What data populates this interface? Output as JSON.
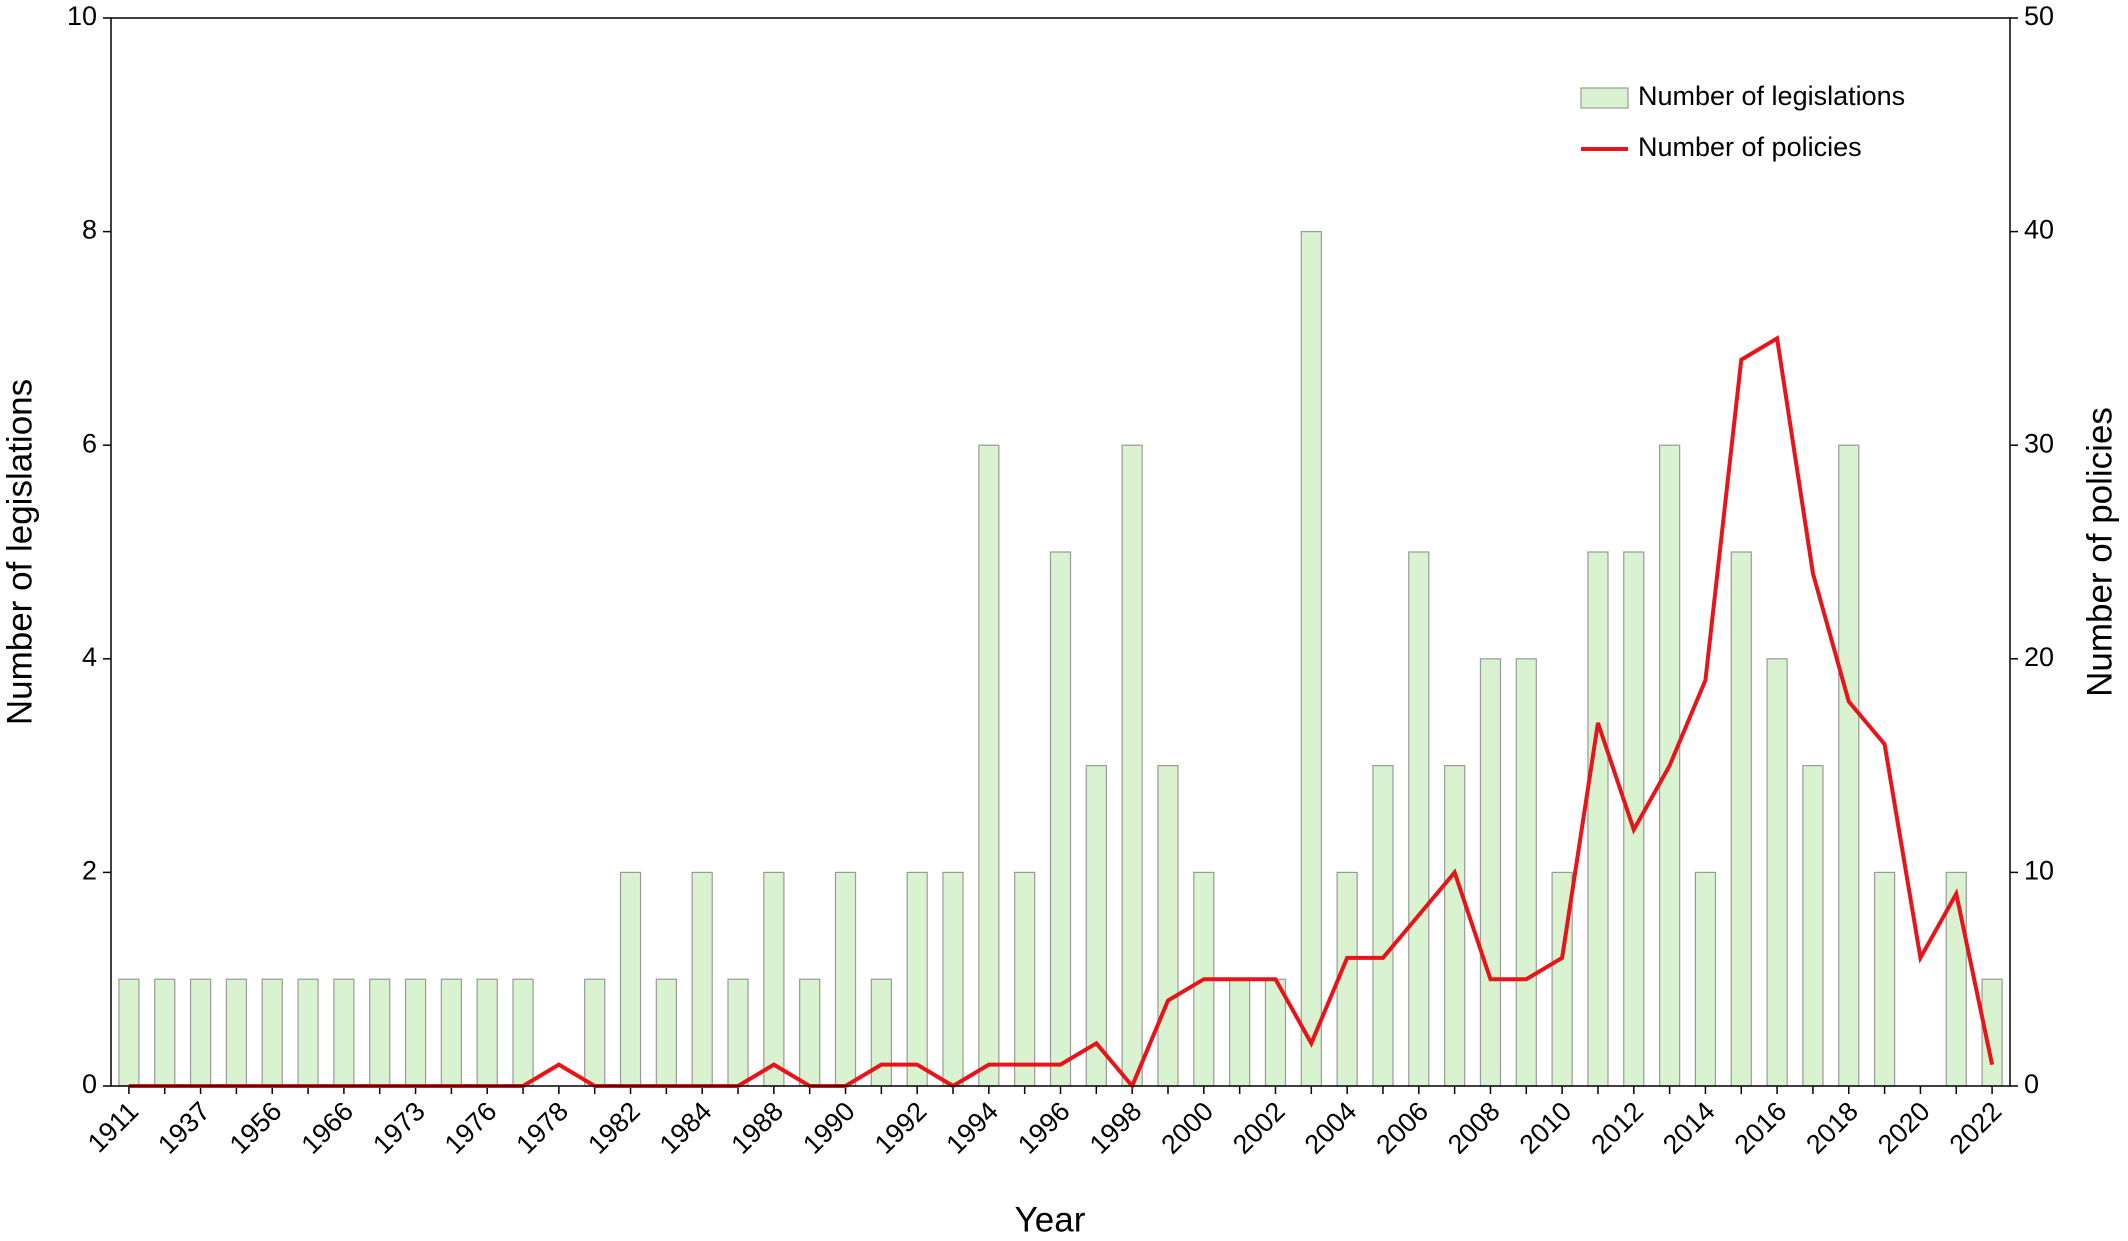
{
  "chart_data": {
    "type": "bar",
    "xlabel": "Year",
    "ylabel": "Number of legislations",
    "y2label": "Number of policies",
    "categories": [
      "1911",
      null,
      "1937",
      null,
      "1956",
      null,
      "1966",
      null,
      "1973",
      null,
      "1976",
      null,
      "1978",
      null,
      "1982",
      null,
      "1984",
      null,
      "1988",
      null,
      "1990",
      null,
      "1992",
      null,
      "1994",
      null,
      "1996",
      null,
      "1998",
      null,
      "2000",
      null,
      "2002",
      null,
      "2004",
      null,
      "2006",
      null,
      "2008",
      null,
      "2010",
      null,
      "2012",
      null,
      "2014",
      null,
      "2016",
      null,
      "2018",
      null,
      "2020",
      null,
      "2022"
    ],
    "series": [
      {
        "name": "Number of legislations",
        "type": "bar",
        "color": "#d9f2d0",
        "edge": "#9a9a9a",
        "values": [
          1,
          1,
          1,
          1,
          1,
          1,
          1,
          1,
          1,
          1,
          1,
          1,
          0,
          1,
          2,
          1,
          2,
          1,
          2,
          1,
          2,
          1,
          2,
          2,
          6,
          2,
          5,
          3,
          6,
          3,
          2,
          1,
          1,
          8,
          2,
          3,
          5,
          3,
          4,
          4,
          2,
          5,
          5,
          6,
          2,
          5,
          4,
          3,
          6,
          2,
          0,
          2,
          1
        ]
      },
      {
        "name": "Number of policies",
        "type": "line",
        "axis": "y2",
        "color": "#e8141a",
        "values": [
          0,
          0,
          0,
          0,
          0,
          0,
          0,
          0,
          0,
          0,
          0,
          0,
          1,
          0,
          0,
          0,
          0,
          0,
          1,
          0,
          0,
          1,
          1,
          0,
          1,
          1,
          1,
          2,
          0,
          4,
          5,
          5,
          5,
          2,
          6,
          6,
          8,
          10,
          5,
          5,
          6,
          17,
          12,
          15,
          19,
          34,
          35,
          24,
          18,
          16,
          6,
          9,
          1
        ]
      }
    ],
    "ylim": [
      0,
      10
    ],
    "yticks": [
      0,
      2,
      4,
      6,
      8,
      10
    ],
    "y2lim": [
      0,
      50
    ],
    "y2ticks": [
      0,
      10,
      20,
      30,
      40,
      50
    ],
    "legend": "upper right"
  }
}
